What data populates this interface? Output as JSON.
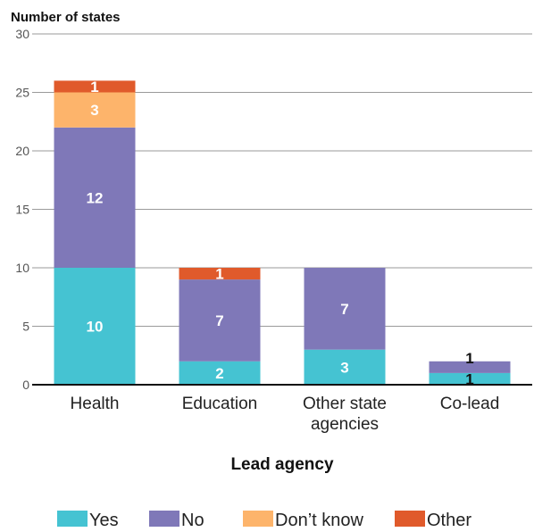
{
  "chart_data": {
    "type": "bar",
    "stacked": true,
    "ylabel": "Number of states",
    "xlabel": "Lead agency",
    "ylim": [
      0,
      30
    ],
    "yticks": [
      0,
      5,
      10,
      15,
      20,
      25,
      30
    ],
    "grid": true,
    "legend_position": "bottom",
    "categories": [
      "Health",
      "Education",
      "Other state agencies",
      "Co-lead"
    ],
    "category_lines": [
      [
        "Health"
      ],
      [
        "Education"
      ],
      [
        "Other state",
        "agencies"
      ],
      [
        "Co-lead"
      ]
    ],
    "series": [
      {
        "name": "Yes",
        "color": "#45c3d2",
        "values": [
          10,
          2,
          3,
          1
        ]
      },
      {
        "name": "No",
        "color": "#7f78b8",
        "values": [
          12,
          7,
          7,
          1
        ]
      },
      {
        "name": "Don’t know",
        "color": "#fdb46b",
        "values": [
          3,
          0,
          0,
          0
        ]
      },
      {
        "name": "Other",
        "color": "#e05a2b",
        "values": [
          1,
          1,
          0,
          0
        ]
      }
    ]
  }
}
